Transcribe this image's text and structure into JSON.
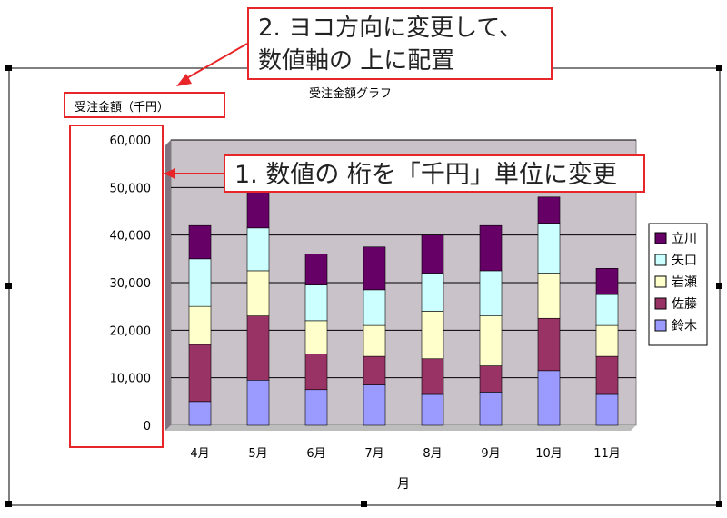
{
  "chart_data": {
    "type": "bar",
    "stacked": true,
    "title": "受注金額グラフ",
    "ylabel": "受注金額（千円）",
    "xlabel": "月",
    "ylim": [
      0,
      60000
    ],
    "y_ticks": [
      "0",
      "10,000",
      "20,000",
      "30,000",
      "40,000",
      "50,000",
      "60,000"
    ],
    "categories": [
      "4月",
      "5月",
      "6月",
      "7月",
      "8月",
      "9月",
      "10月",
      "11月"
    ],
    "series": [
      {
        "name": "鈴木",
        "color": "#9b9bff",
        "values": [
          5000,
          9500,
          7500,
          8500,
          6500,
          7000,
          11500,
          6500
        ]
      },
      {
        "name": "佐藤",
        "color": "#993366",
        "values": [
          12000,
          13500,
          7500,
          6000,
          7500,
          5500,
          11000,
          8000
        ]
      },
      {
        "name": "岩瀬",
        "color": "#ffffcc",
        "values": [
          8000,
          9500,
          7000,
          6500,
          10000,
          10500,
          9500,
          6500
        ]
      },
      {
        "name": "矢口",
        "color": "#ccffff",
        "values": [
          10000,
          9000,
          7500,
          7500,
          8000,
          9500,
          10500,
          6500
        ]
      },
      {
        "name": "立川",
        "color": "#660066",
        "values": [
          7000,
          8000,
          6500,
          9000,
          8000,
          9500,
          5500,
          5500
        ]
      }
    ],
    "legend_position": "right",
    "grid": true
  },
  "annotations": {
    "callout_1": "1. 数値の 桁を「千円」単位に変更",
    "callout_2_line1": "2. ヨコ方向に変更して、",
    "callout_2_line2": "数値軸の 上に配置"
  }
}
